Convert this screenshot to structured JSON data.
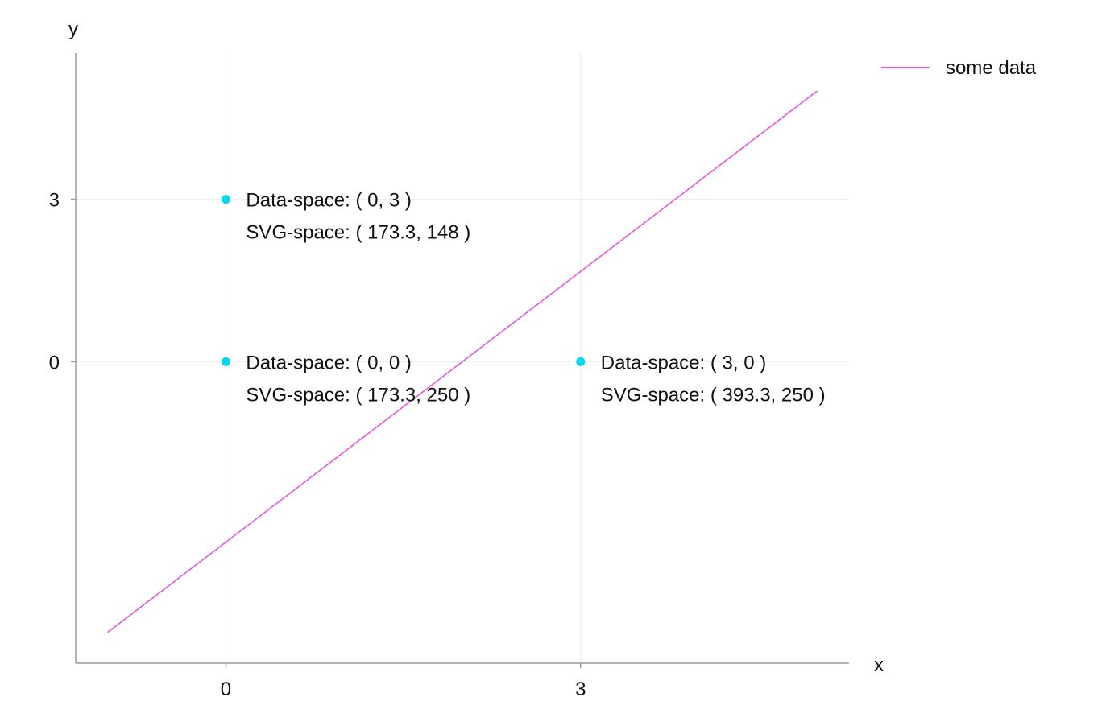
{
  "chart_data": {
    "type": "line",
    "xlabel": "x",
    "ylabel": "y",
    "xlim": [
      -1.27,
      5.27
    ],
    "ylim": [
      -5.57,
      5.7
    ],
    "xticks": [
      0,
      3
    ],
    "yticks": [
      0,
      3
    ],
    "grid": true,
    "legend_position": "top-right",
    "series": [
      {
        "name": "some data",
        "color": "#e75ad8",
        "x": [
          -1,
          5
        ],
        "y": [
          -5,
          5
        ]
      }
    ],
    "points": [
      {
        "x": 0,
        "y": 3,
        "label": "Data-space: ( 0, 3 )",
        "sublabel": "SVG-space: ( 173.3, 148 )"
      },
      {
        "x": 0,
        "y": 0,
        "label": "Data-space: ( 0, 0 )",
        "sublabel": "SVG-space: ( 173.3, 250 )"
      },
      {
        "x": 3,
        "y": 0,
        "label": "Data-space: ( 3, 0 )",
        "sublabel": "SVG-space: ( 393.3, 250 )"
      }
    ],
    "point_color": "#00d9f0",
    "grid_color": "#ececec",
    "axis_color": "#9a9a9a"
  }
}
